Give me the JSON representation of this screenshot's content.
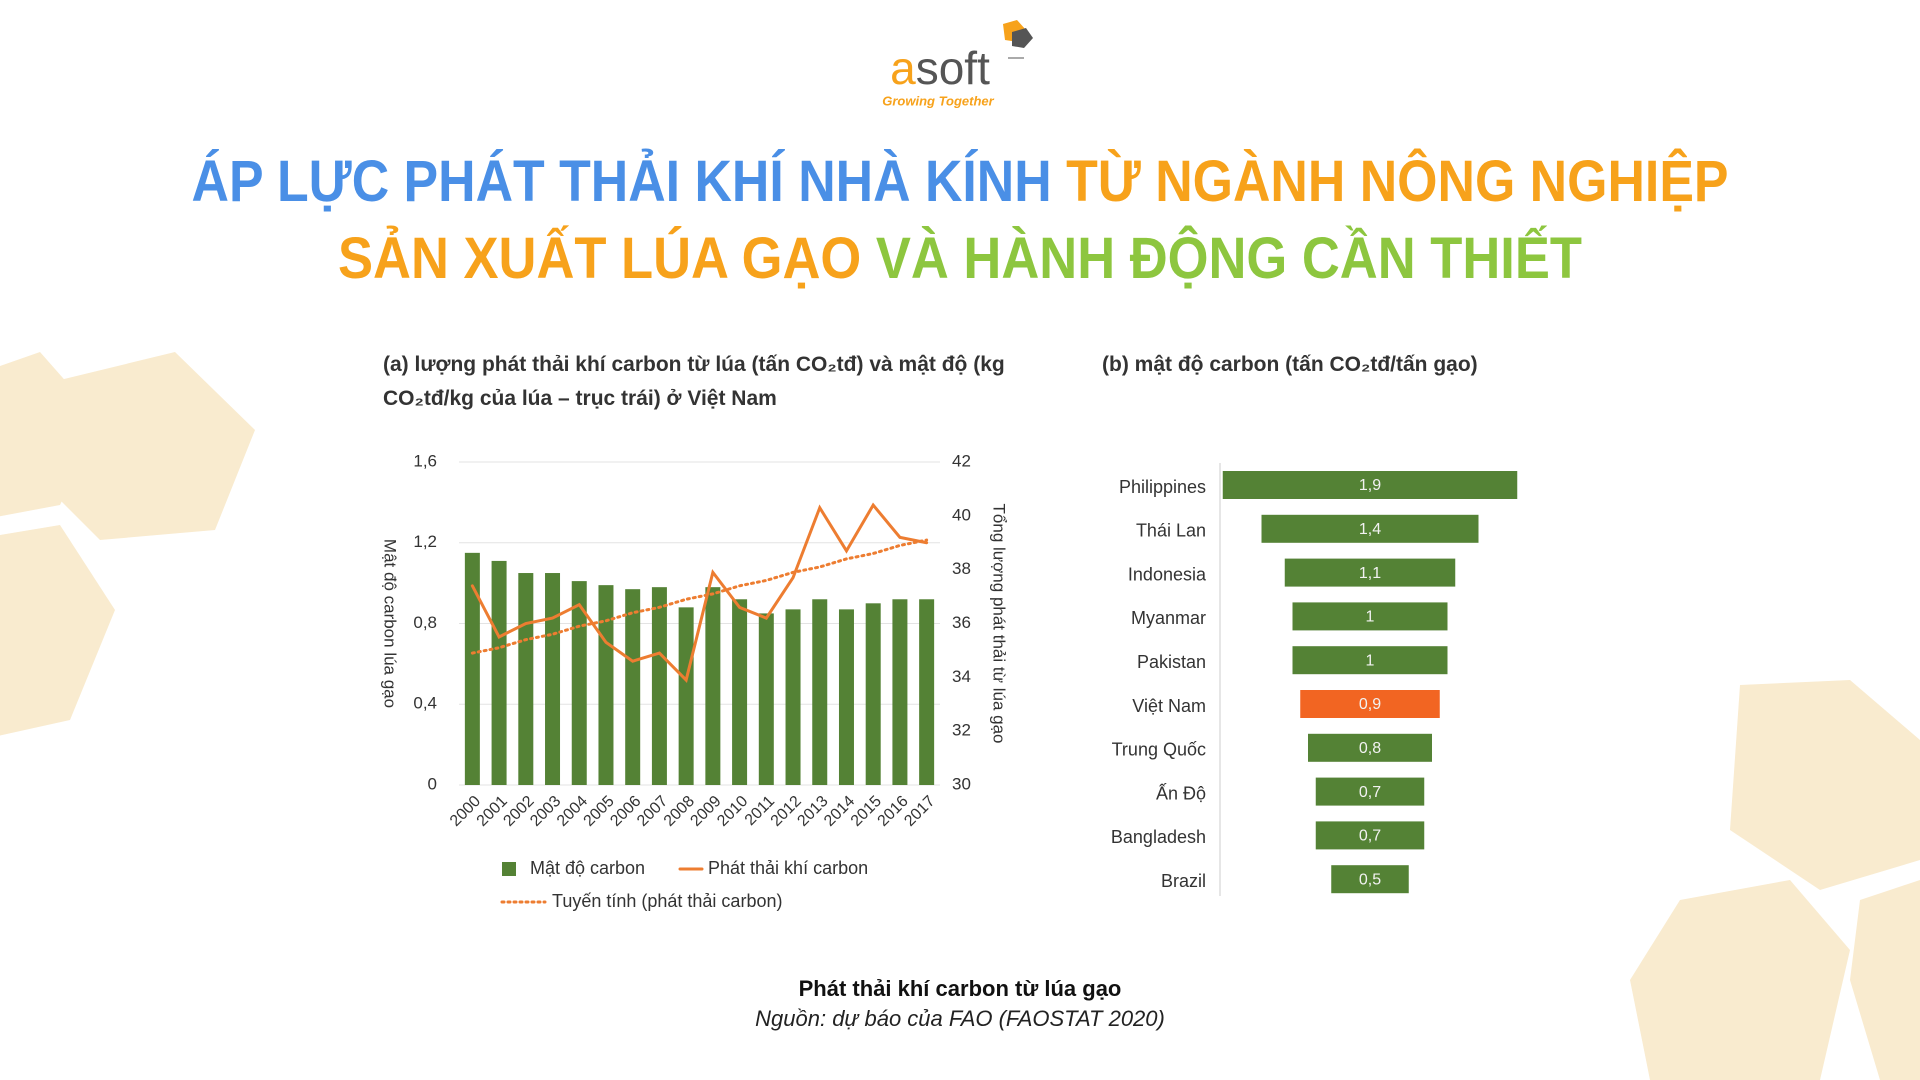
{
  "logo": {
    "mark": "a",
    "rest": "soft",
    "tagline": "Growing Together"
  },
  "title": {
    "lines": [
      [
        {
          "text": "ÁP LỰC PHÁT THẢI KHÍ NHÀ KÍNH ",
          "color": "#4a8fe6"
        },
        {
          "text": "TỪ NGÀNH NÔNG NGHIỆP",
          "color": "#f7a21b"
        }
      ],
      [
        {
          "text": "SẢN XUẤT LÚA GẠO ",
          "color": "#f7a21b"
        },
        {
          "text": "VÀ HÀNH ĐỘNG CẦN THIẾT",
          "color": "#8dc63f"
        }
      ]
    ]
  },
  "chart_data": [
    {
      "type": "bar_line",
      "title": "(a) lượng phát thải khí carbon từ lúa (tấn CO₂tđ) và mật độ (kg CO₂tđ/kg của lúa – trục trái) ở Việt Nam",
      "y_label": "Mật độ carbon lúa gạo",
      "y2_label": "Tổng lượng phát thải từ lúa gạo",
      "categories": [
        "2000",
        "2001",
        "2002",
        "2003",
        "2004",
        "2005",
        "2006",
        "2007",
        "2008",
        "2009",
        "2010",
        "2011",
        "2012",
        "2013",
        "2014",
        "2015",
        "2016",
        "2017"
      ],
      "series": [
        {
          "name": "Mật độ carbon",
          "kind": "bar",
          "axis": "y",
          "color": "#548235",
          "values": [
            1.15,
            1.11,
            1.05,
            1.05,
            1.01,
            0.99,
            0.97,
            0.98,
            0.88,
            0.98,
            0.92,
            0.85,
            0.87,
            0.92,
            0.87,
            0.9,
            0.92,
            0.92
          ]
        },
        {
          "name": "Phát thải khí carbon",
          "kind": "line",
          "axis": "y2",
          "color": "#ed7d31",
          "values": [
            37.4,
            35.5,
            36.0,
            36.2,
            36.7,
            35.3,
            34.6,
            34.9,
            33.9,
            37.9,
            36.6,
            36.2,
            37.7,
            40.3,
            38.7,
            40.4,
            39.2,
            39.0
          ]
        },
        {
          "name": "Tuyến tính (phát thải carbon)",
          "kind": "line",
          "dash": "dotted",
          "axis": "y2",
          "color": "#ed7d31",
          "values": [
            34.9,
            35.1,
            35.4,
            35.6,
            35.9,
            36.1,
            36.4,
            36.6,
            36.9,
            37.1,
            37.4,
            37.6,
            37.9,
            38.1,
            38.4,
            38.6,
            38.9,
            39.1
          ]
        }
      ],
      "ylim": [
        0,
        1.6
      ],
      "yticks": [
        0,
        {
          "value": 0.4,
          "label": "0,4"
        },
        {
          "value": 0.8,
          "label": "0,8"
        },
        {
          "value": 1.2,
          "label": "1,2"
        },
        {
          "value": 1.6,
          "label": "1,6"
        }
      ],
      "y2lim": [
        30,
        42
      ],
      "y2ticks": [
        30,
        32,
        34,
        36,
        38,
        40,
        42
      ],
      "grid": true
    },
    {
      "type": "centered_bar",
      "title": "(b) mật độ carbon (tấn CO₂tđ/tấn gạo)",
      "categories": [
        "Philippines",
        "Thái Lan",
        "Indonesia",
        "Myanmar",
        "Pakistan",
        "Việt Nam",
        "Trung Quốc",
        "Ấn Độ",
        "Bangladesh",
        "Brazil"
      ],
      "values": [
        1.9,
        1.4,
        1.1,
        1,
        1,
        0.9,
        0.8,
        0.7,
        0.7,
        0.5
      ],
      "value_labels": [
        "1,9",
        "1,4",
        "1,1",
        "1",
        "1",
        "0,9",
        "0,8",
        "0,7",
        "0,7",
        "0,5"
      ],
      "colors": [
        "#548235",
        "#548235",
        "#548235",
        "#548235",
        "#548235",
        "#f26522",
        "#548235",
        "#548235",
        "#548235",
        "#548235"
      ]
    }
  ],
  "caption": {
    "title": "Phát thải khí carbon từ lúa gạo",
    "source": "Nguồn: dự báo của FAO (FAOSTAT 2020)"
  }
}
